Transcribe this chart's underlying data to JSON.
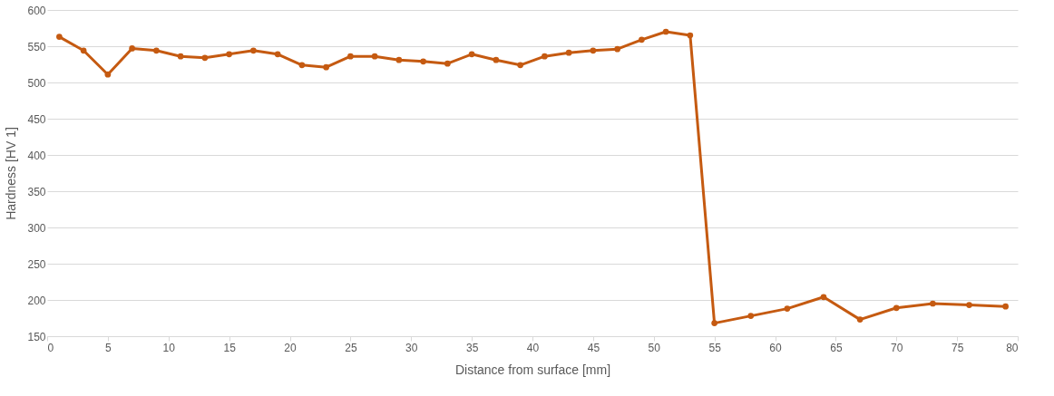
{
  "chart_data": {
    "type": "line",
    "xlabel": "Distance from surface [mm]",
    "ylabel": "Hardness [HV 1]",
    "x": [
      1,
      3,
      5,
      7,
      9,
      11,
      13,
      15,
      17,
      19,
      21,
      23,
      25,
      27,
      29,
      31,
      33,
      35,
      37,
      39,
      41,
      43,
      45,
      47,
      49,
      51,
      53,
      55,
      58,
      61,
      64,
      67,
      70,
      73,
      76,
      79
    ],
    "series": [
      {
        "color": "#c55a11",
        "values": [
          563,
          544,
          511,
          547,
          544,
          536,
          534,
          539,
          544,
          539,
          524,
          521,
          536,
          536,
          531,
          529,
          526,
          539,
          531,
          524,
          536,
          541,
          544,
          546,
          559,
          570,
          565,
          168,
          178,
          188,
          204,
          173,
          189,
          195,
          193,
          191
        ]
      }
    ],
    "xlim": [
      0,
      80
    ],
    "xticks": [
      0,
      5,
      10,
      15,
      20,
      25,
      30,
      35,
      40,
      45,
      50,
      55,
      60,
      65,
      70,
      75,
      80
    ],
    "ylim": [
      150,
      600
    ],
    "yticks": [
      150,
      200,
      250,
      300,
      350,
      400,
      450,
      500,
      550,
      600
    ],
    "grid": "y",
    "marker": "circle",
    "line_style": "solid",
    "legend": false
  }
}
